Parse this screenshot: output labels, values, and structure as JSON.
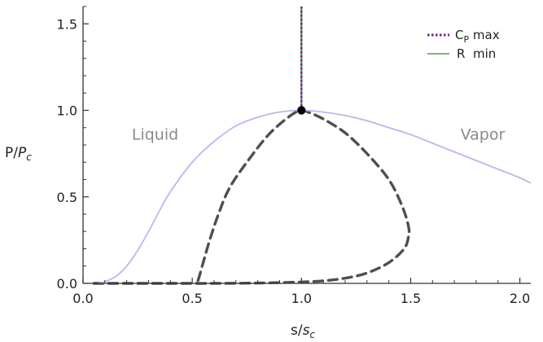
{
  "chart_data": {
    "type": "line",
    "xlabel": {
      "main": "s/",
      "italic": "s",
      "sub": "c"
    },
    "ylabel": {
      "main": "P/",
      "italic": "P",
      "sub": "c"
    },
    "xlim": [
      0,
      2.05
    ],
    "ylim": [
      0,
      1.6
    ],
    "xticks": [
      "0.0",
      "0.5",
      "1.0",
      "1.5",
      "2.0"
    ],
    "xtick_values": [
      0,
      0.5,
      1.0,
      1.5,
      2.0
    ],
    "yticks": [
      "0.0",
      "0.5",
      "1.0",
      "1.5"
    ],
    "ytick_values": [
      0,
      0.5,
      1.0,
      1.5
    ],
    "grid": false,
    "legend_position": "top-right",
    "annotations": [
      {
        "text": "Liquid",
        "x": 0.33,
        "y": 0.83
      },
      {
        "text": "Vapor",
        "x": 1.83,
        "y": 0.83
      }
    ],
    "critical_point": {
      "x": 1.0,
      "y": 1.0
    },
    "series": [
      {
        "key": "coexistence",
        "style": "solid",
        "color": "#b8b8f0",
        "points": [
          [
            0.07,
            0
          ],
          [
            0.1,
            0.01
          ],
          [
            0.15,
            0.04
          ],
          [
            0.2,
            0.1
          ],
          [
            0.25,
            0.19
          ],
          [
            0.3,
            0.3
          ],
          [
            0.35,
            0.42
          ],
          [
            0.4,
            0.53
          ],
          [
            0.5,
            0.7
          ],
          [
            0.6,
            0.82
          ],
          [
            0.7,
            0.91
          ],
          [
            0.8,
            0.96
          ],
          [
            0.9,
            0.99
          ],
          [
            1.0,
            1.0
          ],
          [
            1.1,
            0.99
          ],
          [
            1.2,
            0.97
          ],
          [
            1.3,
            0.94
          ],
          [
            1.4,
            0.9
          ],
          [
            1.5,
            0.86
          ],
          [
            1.6,
            0.81
          ],
          [
            1.7,
            0.76
          ],
          [
            1.8,
            0.71
          ],
          [
            1.9,
            0.66
          ],
          [
            2.0,
            0.61
          ],
          [
            2.05,
            0.58
          ]
        ]
      },
      {
        "key": "dashed-envelope",
        "style": "dashed",
        "color": "#4f4f4f",
        "points": [
          [
            0.05,
            0
          ],
          [
            0.2,
            0
          ],
          [
            0.4,
            0
          ],
          [
            0.5,
            0
          ],
          [
            0.6,
            0
          ],
          [
            0.8,
            0.002
          ],
          [
            1.0,
            0.008
          ],
          [
            1.1,
            0.015
          ],
          [
            1.2,
            0.03
          ],
          [
            1.3,
            0.06
          ],
          [
            1.4,
            0.12
          ],
          [
            1.47,
            0.2
          ],
          [
            1.49,
            0.27
          ],
          [
            1.49,
            0.33
          ],
          [
            1.46,
            0.45
          ],
          [
            1.4,
            0.6
          ],
          [
            1.3,
            0.75
          ],
          [
            1.2,
            0.87
          ],
          [
            1.1,
            0.95
          ],
          [
            1.03,
            0.99
          ],
          [
            1.0,
            1.0
          ],
          [
            0.95,
            0.97
          ],
          [
            0.85,
            0.86
          ],
          [
            0.75,
            0.7
          ],
          [
            0.67,
            0.55
          ],
          [
            0.62,
            0.4
          ],
          [
            0.58,
            0.25
          ],
          [
            0.55,
            0.12
          ],
          [
            0.53,
            0.03
          ],
          [
            0.52,
            0
          ]
        ]
      },
      {
        "key": "cp-max",
        "name_main": "C",
        "name_sub": "P",
        "name_tail": " max",
        "style": "dotted",
        "color": "#7a1d8c",
        "points": [
          [
            1.0,
            1.0
          ],
          [
            1.0,
            1.6
          ]
        ]
      },
      {
        "key": "r-min",
        "name": "R  min",
        "style": "solid",
        "color": "#4aa14a",
        "points": [
          [
            1.0,
            1.0
          ],
          [
            1.0,
            1.6
          ]
        ]
      }
    ]
  }
}
